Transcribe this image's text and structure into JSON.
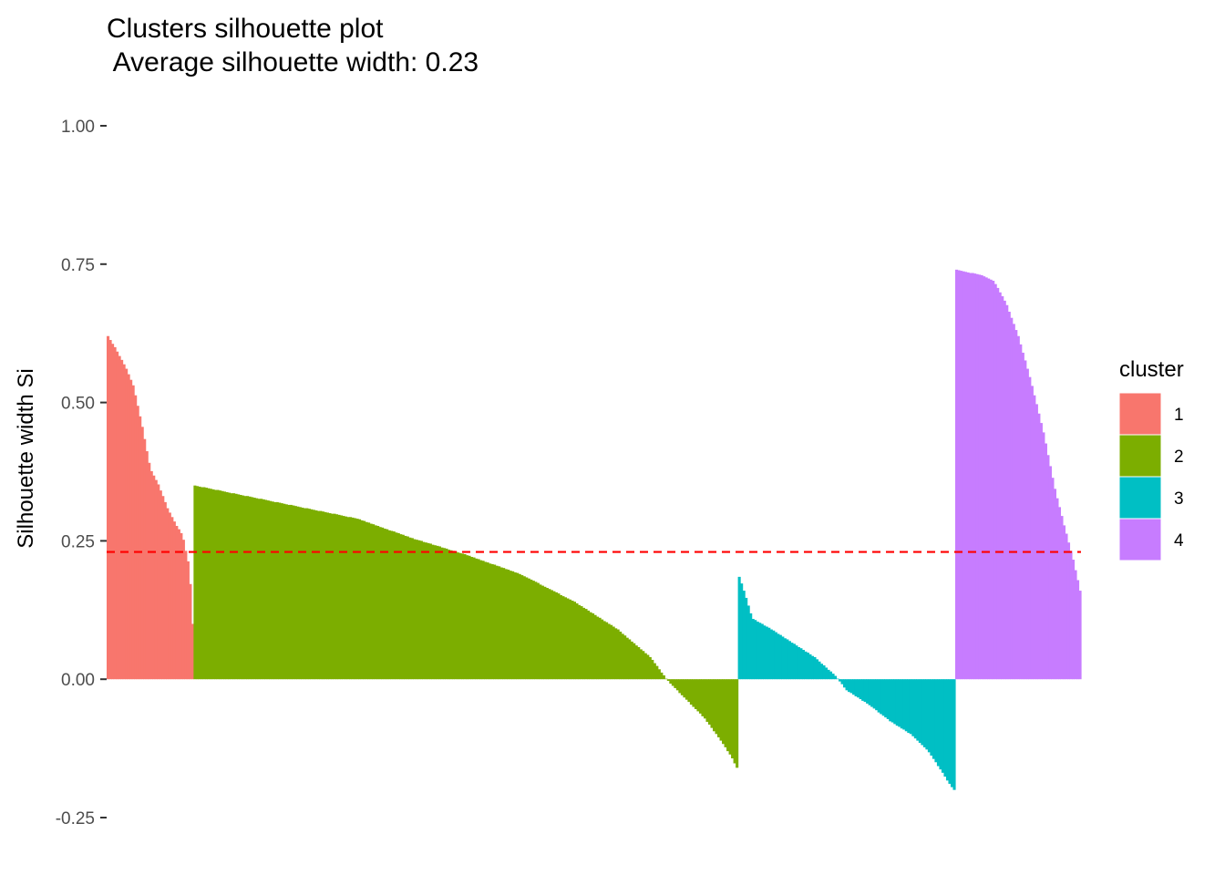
{
  "chart_data": {
    "type": "bar",
    "title": "Clusters silhouette plot",
    "subtitle": " Average silhouette width: 0.23",
    "xlabel": "",
    "ylabel": "Silhouette width Si",
    "ylim": [
      -0.25,
      1.0
    ],
    "yticks": [
      "-0.25",
      "0.00",
      "0.25",
      "0.50",
      "0.75",
      "1.00"
    ],
    "ytick_values": [
      -0.25,
      0,
      0.25,
      0.5,
      0.75,
      1.0
    ],
    "average_silhouette": 0.23,
    "grid": false,
    "legend_title": "cluster",
    "legend_position": "right",
    "total_observations": 426,
    "clusters": [
      {
        "name": "1",
        "color": "#F8766D",
        "n": 38,
        "profile": [
          [
            0,
            0.62
          ],
          [
            0.08,
            0.6
          ],
          [
            0.15,
            0.58
          ],
          [
            0.22,
            0.56
          ],
          [
            0.3,
            0.53
          ],
          [
            0.4,
            0.46
          ],
          [
            0.5,
            0.38
          ],
          [
            0.6,
            0.35
          ],
          [
            0.7,
            0.31
          ],
          [
            0.8,
            0.28
          ],
          [
            0.88,
            0.26
          ],
          [
            0.95,
            0.21
          ],
          [
            0.98,
            0.16
          ],
          [
            1.0,
            0.1
          ]
        ]
      },
      {
        "name": "2",
        "color": "#7CAE00",
        "n": 238,
        "profile": [
          [
            0,
            0.35
          ],
          [
            0.05,
            0.34
          ],
          [
            0.15,
            0.32
          ],
          [
            0.3,
            0.29
          ],
          [
            0.4,
            0.255
          ],
          [
            0.5,
            0.225
          ],
          [
            0.6,
            0.19
          ],
          [
            0.7,
            0.14
          ],
          [
            0.78,
            0.09
          ],
          [
            0.84,
            0.04
          ],
          [
            0.87,
            0.0
          ],
          [
            0.9,
            -0.03
          ],
          [
            0.94,
            -0.07
          ],
          [
            0.97,
            -0.11
          ],
          [
            0.99,
            -0.14
          ],
          [
            1.0,
            -0.16
          ]
        ]
      },
      {
        "name": "3",
        "color": "#00BFC4",
        "n": 95,
        "profile": [
          [
            0,
            0.185
          ],
          [
            0.03,
            0.15
          ],
          [
            0.06,
            0.11
          ],
          [
            0.15,
            0.09
          ],
          [
            0.25,
            0.065
          ],
          [
            0.35,
            0.04
          ],
          [
            0.45,
            0.005
          ],
          [
            0.5,
            -0.02
          ],
          [
            0.6,
            -0.045
          ],
          [
            0.7,
            -0.075
          ],
          [
            0.8,
            -0.1
          ],
          [
            0.88,
            -0.13
          ],
          [
            0.94,
            -0.165
          ],
          [
            0.98,
            -0.19
          ],
          [
            1.0,
            -0.2
          ]
        ]
      },
      {
        "name": "4",
        "color": "#C77CFF",
        "n": 55,
        "profile": [
          [
            0,
            0.74
          ],
          [
            0.1,
            0.735
          ],
          [
            0.2,
            0.73
          ],
          [
            0.3,
            0.72
          ],
          [
            0.4,
            0.68
          ],
          [
            0.5,
            0.62
          ],
          [
            0.6,
            0.54
          ],
          [
            0.7,
            0.45
          ],
          [
            0.8,
            0.34
          ],
          [
            0.88,
            0.27
          ],
          [
            0.94,
            0.22
          ],
          [
            0.98,
            0.18
          ],
          [
            1.0,
            0.16
          ]
        ]
      }
    ]
  }
}
